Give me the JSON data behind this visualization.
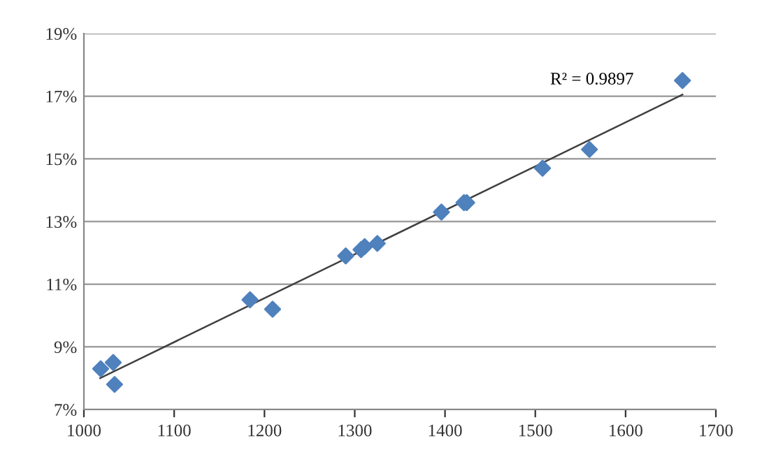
{
  "chart_data": {
    "type": "scatter",
    "grid": "y",
    "series": [
      {
        "color": "#4f81bd",
        "marker": "diamond",
        "x": [
          1018.6,
          1032.5,
          1034,
          1184,
          1209,
          1290,
          1307,
          1311,
          1325,
          1396,
          1421,
          1424,
          1508,
          1560,
          1663
        ],
        "values": [
          8.3,
          8.5,
          7.8,
          10.5,
          10.2,
          11.9,
          12.1,
          12.2,
          12.3,
          13.3,
          13.6,
          13.6,
          14.7,
          15.3,
          17.5
        ]
      },
      {
        "type": "line",
        "marker": "none",
        "color": "#404040",
        "x": [
          1018,
          1663
        ],
        "values": [
          8.0,
          17.05
        ]
      }
    ],
    "annotations": [
      "R² = 0.9897"
    ],
    "xlim": [
      1000,
      1700
    ],
    "xticks": [
      1000,
      1100,
      1200,
      1300,
      1400,
      1500,
      1600,
      1700
    ],
    "ylim": [
      7,
      19
    ],
    "yticks": [
      {
        "value": 7,
        "label": "7%"
      },
      {
        "value": 9,
        "label": "9%"
      },
      {
        "value": 11,
        "label": "11%"
      },
      {
        "value": 13,
        "label": "13%"
      },
      {
        "value": 15,
        "label": "15%"
      },
      {
        "value": 17,
        "label": "17%"
      },
      {
        "value": 19,
        "label": "19%"
      }
    ]
  }
}
